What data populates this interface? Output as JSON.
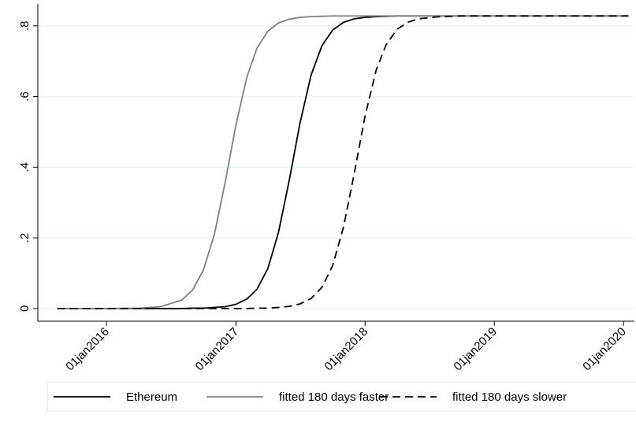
{
  "chart_data": {
    "type": "line",
    "x": [
      "2015-08-15",
      "2016-01-01",
      "2016-04-01",
      "2016-06-01",
      "2016-08-01",
      "2016-09-01",
      "2016-10-01",
      "2016-11-01",
      "2016-12-01",
      "2017-01-01",
      "2017-02-01",
      "2017-03-01",
      "2017-04-01",
      "2017-05-01",
      "2017-06-01",
      "2017-07-01",
      "2017-08-01",
      "2017-09-01",
      "2017-10-01",
      "2017-11-01",
      "2017-12-01",
      "2018-01-01",
      "2018-02-01",
      "2018-03-01",
      "2018-04-01",
      "2018-05-01",
      "2018-06-01",
      "2018-08-01",
      "2018-10-01",
      "2019-01-01",
      "2019-06-01",
      "2020-01-15"
    ],
    "series": [
      {
        "name": "Ethereum",
        "color": "#000000",
        "dash": "solid",
        "values": [
          0,
          0,
          0,
          0,
          0,
          0.001,
          0.001,
          0.003,
          0.005,
          0.012,
          0.027,
          0.054,
          0.113,
          0.215,
          0.365,
          0.525,
          0.66,
          0.744,
          0.788,
          0.81,
          0.82,
          0.824,
          0.826,
          0.827,
          0.828,
          0.828,
          0.828,
          0.828,
          0.828,
          0.828,
          0.828,
          0.828
        ]
      },
      {
        "name": "fitted 180 days faster",
        "color": "#808080",
        "dash": "solid",
        "values": [
          0,
          0,
          0.001,
          0.005,
          0.024,
          0.053,
          0.109,
          0.21,
          0.355,
          0.52,
          0.656,
          0.736,
          0.785,
          0.808,
          0.819,
          0.824,
          0.826,
          0.827,
          0.828,
          0.828,
          0.828,
          0.828,
          0.828,
          0.828,
          0.828,
          0.828,
          0.828,
          0.828,
          0.828,
          0.828,
          0.828,
          0.828
        ]
      },
      {
        "name": "fitted 180 days slower",
        "color": "#000000",
        "dash": "dashed",
        "values": [
          0,
          0,
          0,
          0,
          0,
          0,
          0,
          0,
          0,
          0,
          0,
          0.001,
          0.001,
          0.003,
          0.006,
          0.013,
          0.028,
          0.06,
          0.121,
          0.231,
          0.381,
          0.546,
          0.674,
          0.746,
          0.79,
          0.81,
          0.82,
          0.826,
          0.828,
          0.828,
          0.828,
          0.828
        ]
      }
    ],
    "xlim": [
      "2015-06-21",
      "2020-02-01"
    ],
    "xticks": [
      {
        "value": "2016-01-01",
        "label": "01jan2016"
      },
      {
        "value": "2017-01-01",
        "label": "01jan2017"
      },
      {
        "value": "2018-01-01",
        "label": "01jan2018"
      },
      {
        "value": "2019-01-01",
        "label": "01jan2019"
      },
      {
        "value": "2020-01-01",
        "label": "01jan2020"
      }
    ],
    "ylim": [
      -0.036,
      0.862
    ],
    "yticks": [
      0,
      {
        "value": 0.2,
        "label": ".2"
      },
      {
        "value": 0.4,
        "label": ".4"
      },
      {
        "value": 0.6,
        "label": ".6"
      },
      {
        "value": 0.8,
        "label": ".8"
      }
    ],
    "grid": true,
    "legend": "bottom"
  }
}
